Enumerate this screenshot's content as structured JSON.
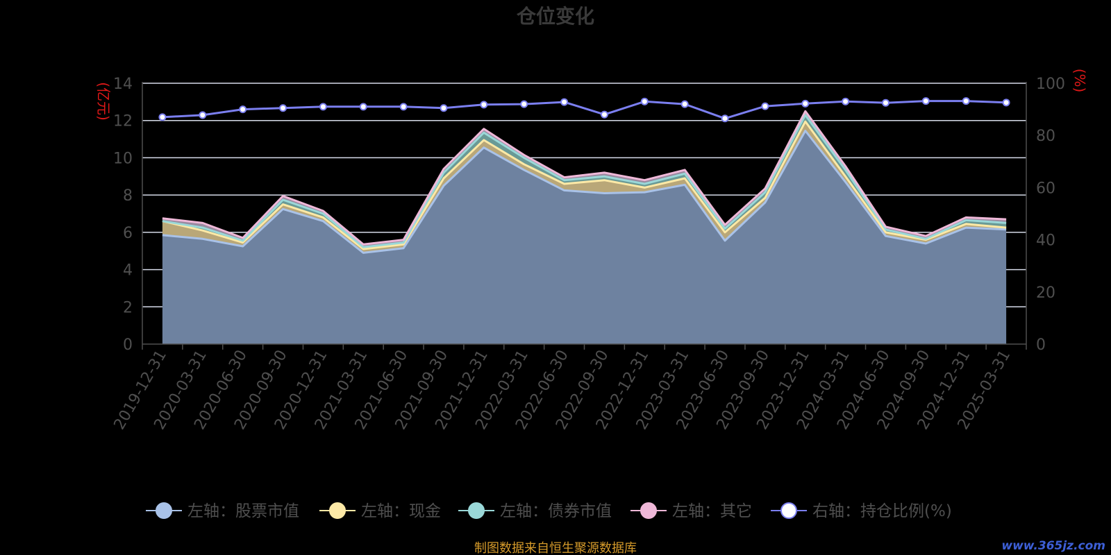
{
  "chart_data": {
    "type": "area",
    "title": "仓位变化",
    "left_axis_label": "(亿元)",
    "right_axis_label": "(%)",
    "left_ylim": [
      0,
      14
    ],
    "left_ticks": [
      "0",
      "2",
      "4",
      "6",
      "8",
      "10",
      "12",
      "14"
    ],
    "right_ylim": [
      0,
      100
    ],
    "right_ticks": [
      "0",
      "20",
      "40",
      "60",
      "80",
      "100"
    ],
    "grid": true,
    "legend_position": "bottom",
    "categories": [
      "2019-12-31",
      "2020-03-31",
      "2020-06-30",
      "2020-09-30",
      "2020-12-31",
      "2021-03-31",
      "2021-06-30",
      "2021-09-30",
      "2021-12-31",
      "2022-03-31",
      "2022-06-30",
      "2022-09-30",
      "2022-12-31",
      "2023-03-31",
      "2023-06-30",
      "2023-09-30",
      "2023-12-31",
      "2024-03-31",
      "2024-06-30",
      "2024-09-30",
      "2024-12-31",
      "2025-03-31"
    ],
    "series": [
      {
        "name": "左轴：股票市值",
        "axis": "left",
        "stacked": true,
        "color": "#a9c2e8",
        "fill": "#6e82a0",
        "values": [
          5.85,
          5.65,
          5.25,
          7.25,
          6.6,
          4.9,
          5.15,
          8.5,
          10.55,
          9.35,
          8.25,
          8.1,
          8.15,
          8.55,
          5.55,
          7.6,
          11.45,
          8.7,
          5.8,
          5.4,
          6.25,
          6.15
        ]
      },
      {
        "name": "左轴：现金",
        "axis": "left",
        "stacked": true,
        "color": "#fde9a6",
        "fill": "#b9a778",
        "values": [
          0.75,
          0.45,
          0.2,
          0.25,
          0.2,
          0.2,
          0.2,
          0.4,
          0.4,
          0.3,
          0.35,
          0.7,
          0.25,
          0.35,
          0.45,
          0.25,
          0.5,
          0.3,
          0.2,
          0.2,
          0.2,
          0.1
        ]
      },
      {
        "name": "左轴：债券市值",
        "axis": "left",
        "stacked": true,
        "color": "#9ad8d8",
        "fill": "#6a9a96",
        "values": [
          0.0,
          0.15,
          0.1,
          0.25,
          0.2,
          0.1,
          0.1,
          0.3,
          0.4,
          0.35,
          0.2,
          0.2,
          0.2,
          0.25,
          0.2,
          0.3,
          0.35,
          0.35,
          0.15,
          0.05,
          0.2,
          0.25
        ]
      },
      {
        "name": "左轴：其它",
        "axis": "left",
        "stacked": true,
        "color": "#efb8d8",
        "fill": "#9a8aa0",
        "values": [
          0.15,
          0.25,
          0.15,
          0.2,
          0.15,
          0.15,
          0.15,
          0.2,
          0.2,
          0.15,
          0.15,
          0.2,
          0.2,
          0.2,
          0.2,
          0.2,
          0.2,
          0.2,
          0.15,
          0.15,
          0.15,
          0.2
        ]
      },
      {
        "name": "右轴：持仓比例(%)",
        "axis": "right",
        "stacked": false,
        "color": "#7b7ff0",
        "fill": "none",
        "values": [
          87.0,
          87.8,
          90.0,
          90.5,
          91.0,
          91.0,
          91.0,
          90.5,
          91.8,
          92.0,
          92.8,
          88.0,
          93.0,
          92.0,
          86.5,
          91.2,
          92.2,
          93.0,
          92.5,
          93.2,
          93.2,
          92.6
        ]
      }
    ]
  },
  "footer": {
    "source": "制图数据来自恒生聚源数据库",
    "watermark": "www.365jz.com"
  },
  "colors": {
    "background": "#000000",
    "axis_text": "#4f4f4f",
    "axis_label_red": "#e01818",
    "grid": "#d7dcea",
    "title": "#3a3a3a",
    "footer": "#d59a2a",
    "watermark": "#3d5fd6"
  }
}
